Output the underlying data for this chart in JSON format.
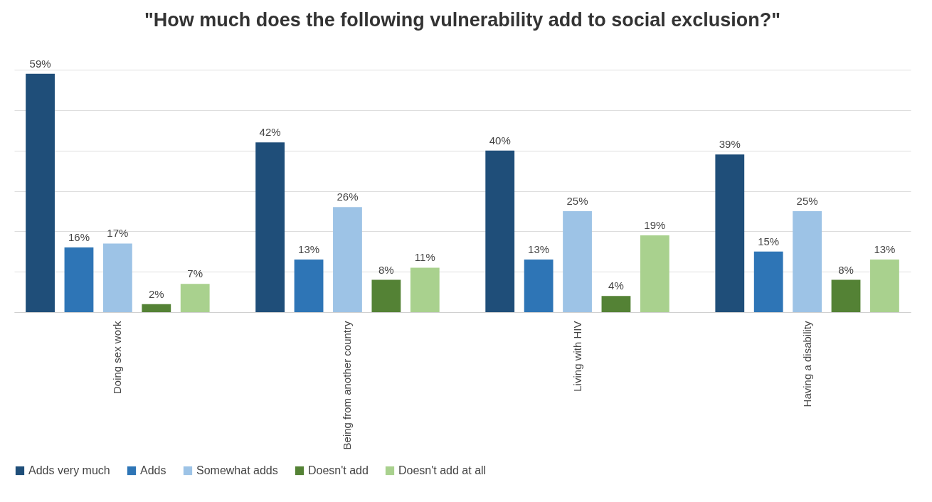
{
  "chart_data": {
    "type": "bar",
    "title": "\"How much does the following vulnerability add to social exclusion?\"",
    "categories": [
      "Doing sex work",
      "Being from another country",
      "Living with HIV",
      "Having a disability"
    ],
    "series": [
      {
        "name": "Adds very much",
        "color": "#1f4e79",
        "values": [
          59,
          42,
          40,
          39
        ],
        "value_labels": [
          "59%",
          "42%",
          "40%",
          "39%"
        ]
      },
      {
        "name": "Adds",
        "color": "#2e75b6",
        "values": [
          16,
          13,
          13,
          15
        ],
        "value_labels": [
          "16%",
          "13%",
          "13%",
          "15%"
        ]
      },
      {
        "name": "Somewhat adds",
        "color": "#9dc3e6",
        "values": [
          17,
          26,
          25,
          25
        ],
        "value_labels": [
          "17%",
          "26%",
          "25%",
          "25%"
        ]
      },
      {
        "name": "Doesn't add",
        "color": "#548235",
        "values": [
          2,
          8,
          4,
          8
        ],
        "value_labels": [
          "2%",
          "8%",
          "4%",
          "8%"
        ]
      },
      {
        "name": "Doesn't add at all",
        "color": "#a9d18e",
        "values": [
          7,
          11,
          19,
          13
        ],
        "value_labels": [
          "7%",
          "11%",
          "19%",
          "13%"
        ]
      }
    ],
    "ylim": [
      0,
      60
    ],
    "yticks": [
      {
        "value": 0,
        "label": null
      },
      {
        "value": 10,
        "label": null
      },
      {
        "value": 20,
        "label": null
      },
      {
        "value": 30,
        "label": null
      },
      {
        "value": 40,
        "label": null
      },
      {
        "value": 50,
        "label": null
      },
      {
        "value": 60,
        "label": null
      }
    ],
    "tick_labels": "x",
    "grid": "y",
    "legend": "bottom"
  }
}
